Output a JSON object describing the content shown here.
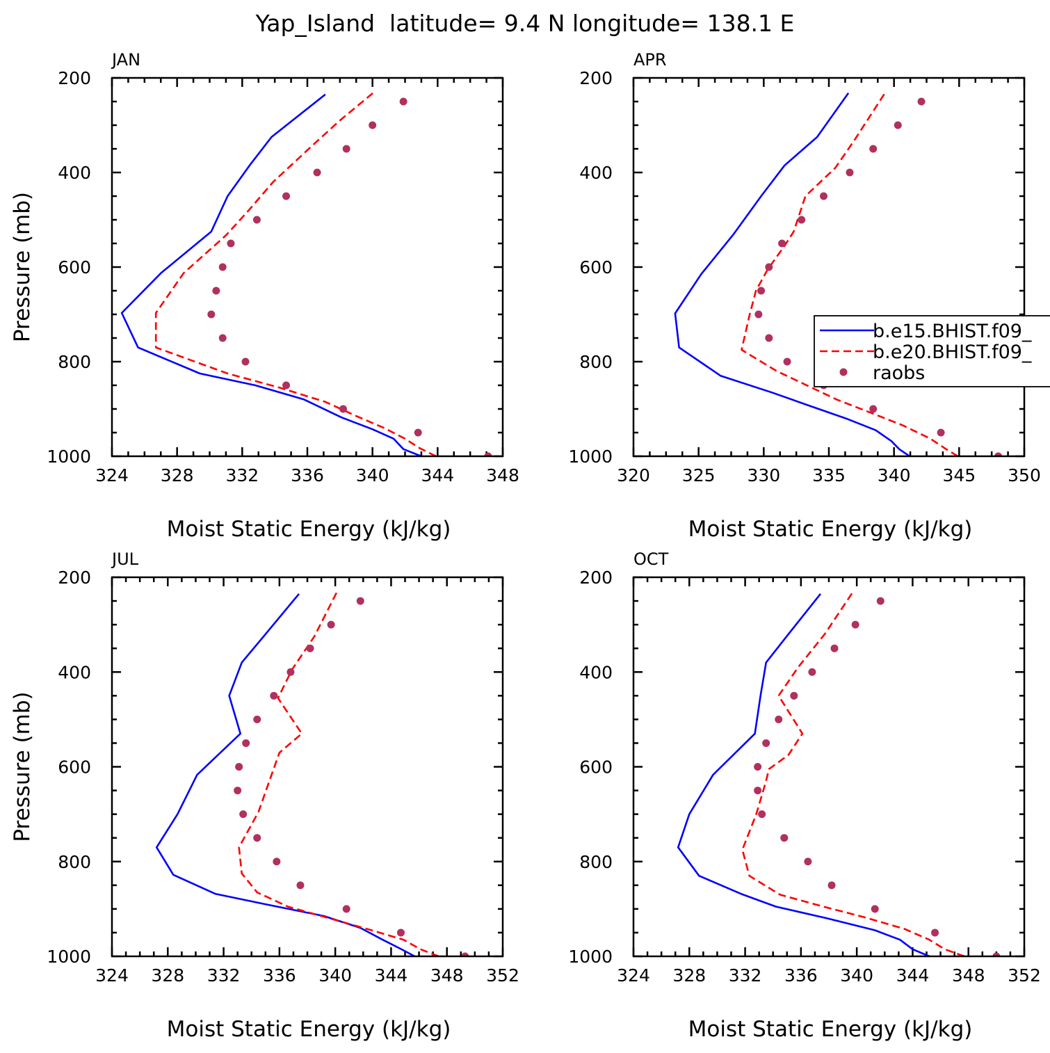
{
  "title": "Yap_Island  latitude= 9.4 N longitude= 138.1 E",
  "colors": {
    "series1": "#0000ff",
    "series2": "#ff0000",
    "raobs": "#b03060"
  },
  "chart_data": [
    {
      "type": "line",
      "panel_label": "JAN",
      "xlabel": "Moist Static Energy (kJ/kg)",
      "ylabel": "Pressure (mb)",
      "xlim": [
        324,
        348
      ],
      "xticks": [
        324,
        328,
        332,
        336,
        340,
        344,
        348
      ],
      "ylim": [
        1000,
        200
      ],
      "yticks": [
        200,
        400,
        600,
        800,
        1000
      ],
      "show_y_title": true,
      "legend": null,
      "series": [
        {
          "name": "b.e15.BHIST.f09_",
          "style": "solid",
          "color": "#0000ff",
          "x": [
            343.0,
            341.9,
            341.3,
            340.0,
            338.1,
            335.8,
            332.8,
            329.4,
            325.6,
            324.6,
            327.0,
            330.1,
            331.1,
            332.5,
            333.8,
            337.1
          ],
          "y": [
            1000,
            985,
            963,
            943,
            918,
            880,
            850,
            825,
            770,
            697,
            613,
            525,
            450,
            383,
            325,
            235
          ]
        },
        {
          "name": "b.e20.BHIST.f09_",
          "style": "dashed",
          "color": "#ff0000",
          "x": [
            343.9,
            342.9,
            342.0,
            340.7,
            339.0,
            337.1,
            334.3,
            331.1,
            326.7,
            326.7,
            328.4,
            331.0,
            332.4,
            333.9,
            336.4,
            338.0,
            340.1
          ],
          "y": [
            1000,
            983,
            963,
            940,
            915,
            885,
            855,
            825,
            770,
            697,
            613,
            533,
            480,
            420,
            340,
            290,
            230
          ]
        },
        {
          "name": "raobs",
          "style": "points",
          "color": "#b03060",
          "x": [
            347.1,
            342.8,
            338.2,
            334.7,
            332.2,
            330.8,
            330.1,
            330.4,
            330.8,
            331.3,
            332.9,
            334.7,
            336.6,
            338.4,
            340.0,
            341.9
          ],
          "y": [
            1000,
            950,
            900,
            850,
            800,
            750,
            700,
            650,
            600,
            550,
            500,
            450,
            400,
            350,
            300,
            250
          ]
        }
      ]
    },
    {
      "type": "line",
      "panel_label": "APR",
      "xlabel": "Moist Static Energy (kJ/kg)",
      "ylabel": "",
      "xlim": [
        320,
        350
      ],
      "xticks": [
        320,
        325,
        330,
        335,
        340,
        345,
        350
      ],
      "ylim": [
        1000,
        200
      ],
      "yticks": [
        200,
        400,
        600,
        800,
        1000
      ],
      "show_y_title": false,
      "legend": {
        "placement": "right",
        "entries": [
          "b.e15.BHIST.f09_",
          "b.e20.BHIST.f09_",
          "raobs"
        ]
      },
      "series": [
        {
          "name": "b.e15.BHIST.f09_",
          "style": "solid",
          "color": "#0000ff",
          "x": [
            341.2,
            340.4,
            339.8,
            338.6,
            336.3,
            333.7,
            330.6,
            326.7,
            323.5,
            323.2,
            325.2,
            327.7,
            329.8,
            331.6,
            334.1,
            336.5
          ],
          "y": [
            1000,
            985,
            968,
            945,
            920,
            895,
            865,
            830,
            770,
            698,
            615,
            530,
            450,
            385,
            325,
            232
          ]
        },
        {
          "name": "b.e20.BHIST.f09_",
          "style": "dashed",
          "color": "#ff0000",
          "x": [
            344.9,
            344.0,
            342.8,
            340.7,
            338.4,
            335.6,
            331.0,
            328.3,
            328.9,
            329.4,
            330.3,
            331.6,
            332.3,
            333.2,
            335.5,
            337.0,
            339.3
          ],
          "y": [
            1000,
            985,
            963,
            935,
            910,
            880,
            820,
            775,
            703,
            650,
            605,
            555,
            525,
            450,
            390,
            330,
            232
          ]
        },
        {
          "name": "raobs",
          "style": "points",
          "color": "#b03060",
          "x": [
            348.0,
            343.6,
            338.4,
            334.6,
            331.8,
            330.4,
            329.6,
            329.8,
            330.4,
            331.4,
            332.9,
            334.6,
            336.6,
            338.4,
            340.3,
            342.1
          ],
          "y": [
            1000,
            950,
            900,
            850,
            800,
            750,
            700,
            650,
            600,
            550,
            500,
            450,
            400,
            350,
            300,
            250
          ]
        }
      ]
    },
    {
      "type": "line",
      "panel_label": "JUL",
      "xlabel": "Moist Static Energy (kJ/kg)",
      "ylabel": "Pressure (mb)",
      "xlim": [
        324,
        352
      ],
      "xticks": [
        324,
        328,
        332,
        336,
        340,
        344,
        348,
        352
      ],
      "ylim": [
        1000,
        200
      ],
      "yticks": [
        200,
        400,
        600,
        800,
        1000
      ],
      "show_y_title": true,
      "legend": null,
      "series": [
        {
          "name": "b.e15.BHIST.f09_",
          "style": "solid",
          "color": "#0000ff",
          "x": [
            345.7,
            344.6,
            343.4,
            341.8,
            339.2,
            335.0,
            331.4,
            328.4,
            327.2,
            328.7,
            330.1,
            333.2,
            332.4,
            333.3,
            335.0,
            337.4
          ],
          "y": [
            1000,
            983,
            965,
            940,
            915,
            890,
            868,
            828,
            770,
            700,
            617,
            530,
            450,
            380,
            320,
            235
          ]
        },
        {
          "name": "b.e20.BHIST.f09_",
          "style": "dashed",
          "color": "#ff0000",
          "x": [
            347.4,
            346.1,
            344.9,
            342.6,
            339.6,
            336.6,
            334.4,
            333.3,
            333.1,
            334.5,
            335.4,
            336.0,
            337.6,
            335.9,
            336.9,
            338.5,
            340.1
          ],
          "y": [
            1000,
            985,
            965,
            945,
            920,
            895,
            865,
            825,
            770,
            695,
            620,
            570,
            530,
            455,
            395,
            325,
            232
          ]
        },
        {
          "name": "raobs",
          "style": "points",
          "color": "#b03060",
          "x": [
            349.3,
            344.7,
            340.8,
            337.5,
            335.8,
            334.4,
            333.4,
            333.0,
            333.1,
            333.6,
            334.4,
            335.6,
            336.8,
            338.2,
            339.7,
            341.8
          ],
          "y": [
            1000,
            950,
            900,
            850,
            800,
            750,
            700,
            650,
            600,
            550,
            500,
            450,
            400,
            350,
            300,
            250
          ]
        }
      ]
    },
    {
      "type": "line",
      "panel_label": "OCT",
      "xlabel": "Moist Static Energy (kJ/kg)",
      "ylabel": "",
      "xlim": [
        324,
        352
      ],
      "xticks": [
        324,
        328,
        332,
        336,
        340,
        344,
        348,
        352
      ],
      "ylim": [
        1000,
        200
      ],
      "yticks": [
        200,
        400,
        600,
        800,
        1000
      ],
      "show_y_title": false,
      "legend": null,
      "series": [
        {
          "name": "b.e15.BHIST.f09_",
          "style": "solid",
          "color": "#0000ff",
          "x": [
            345.2,
            344.0,
            343.1,
            341.3,
            337.9,
            334.2,
            331.7,
            328.7,
            327.2,
            328.0,
            329.7,
            332.7,
            333.1,
            333.5,
            335.1,
            337.4
          ],
          "y": [
            1000,
            985,
            965,
            945,
            920,
            895,
            868,
            830,
            770,
            700,
            617,
            530,
            450,
            380,
            320,
            235
          ]
        },
        {
          "name": "b.e20.BHIST.f09_",
          "style": "dashed",
          "color": "#ff0000",
          "x": [
            347.7,
            346.3,
            345.2,
            343.4,
            340.6,
            337.6,
            334.5,
            332.3,
            331.8,
            332.8,
            333.5,
            333.7,
            335.1,
            336.1,
            334.4,
            335.8,
            337.7,
            339.7
          ],
          "y": [
            1000,
            985,
            965,
            942,
            918,
            895,
            870,
            830,
            775,
            700,
            630,
            605,
            575,
            530,
            450,
            390,
            320,
            232
          ]
        },
        {
          "name": "raobs",
          "style": "points",
          "color": "#b03060",
          "x": [
            350.0,
            345.6,
            341.3,
            338.2,
            336.5,
            334.8,
            333.2,
            332.9,
            332.9,
            333.5,
            334.4,
            335.5,
            336.8,
            338.4,
            339.9,
            341.7
          ],
          "y": [
            1000,
            950,
            900,
            850,
            800,
            750,
            700,
            650,
            600,
            550,
            500,
            450,
            400,
            350,
            300,
            250
          ]
        }
      ]
    }
  ]
}
